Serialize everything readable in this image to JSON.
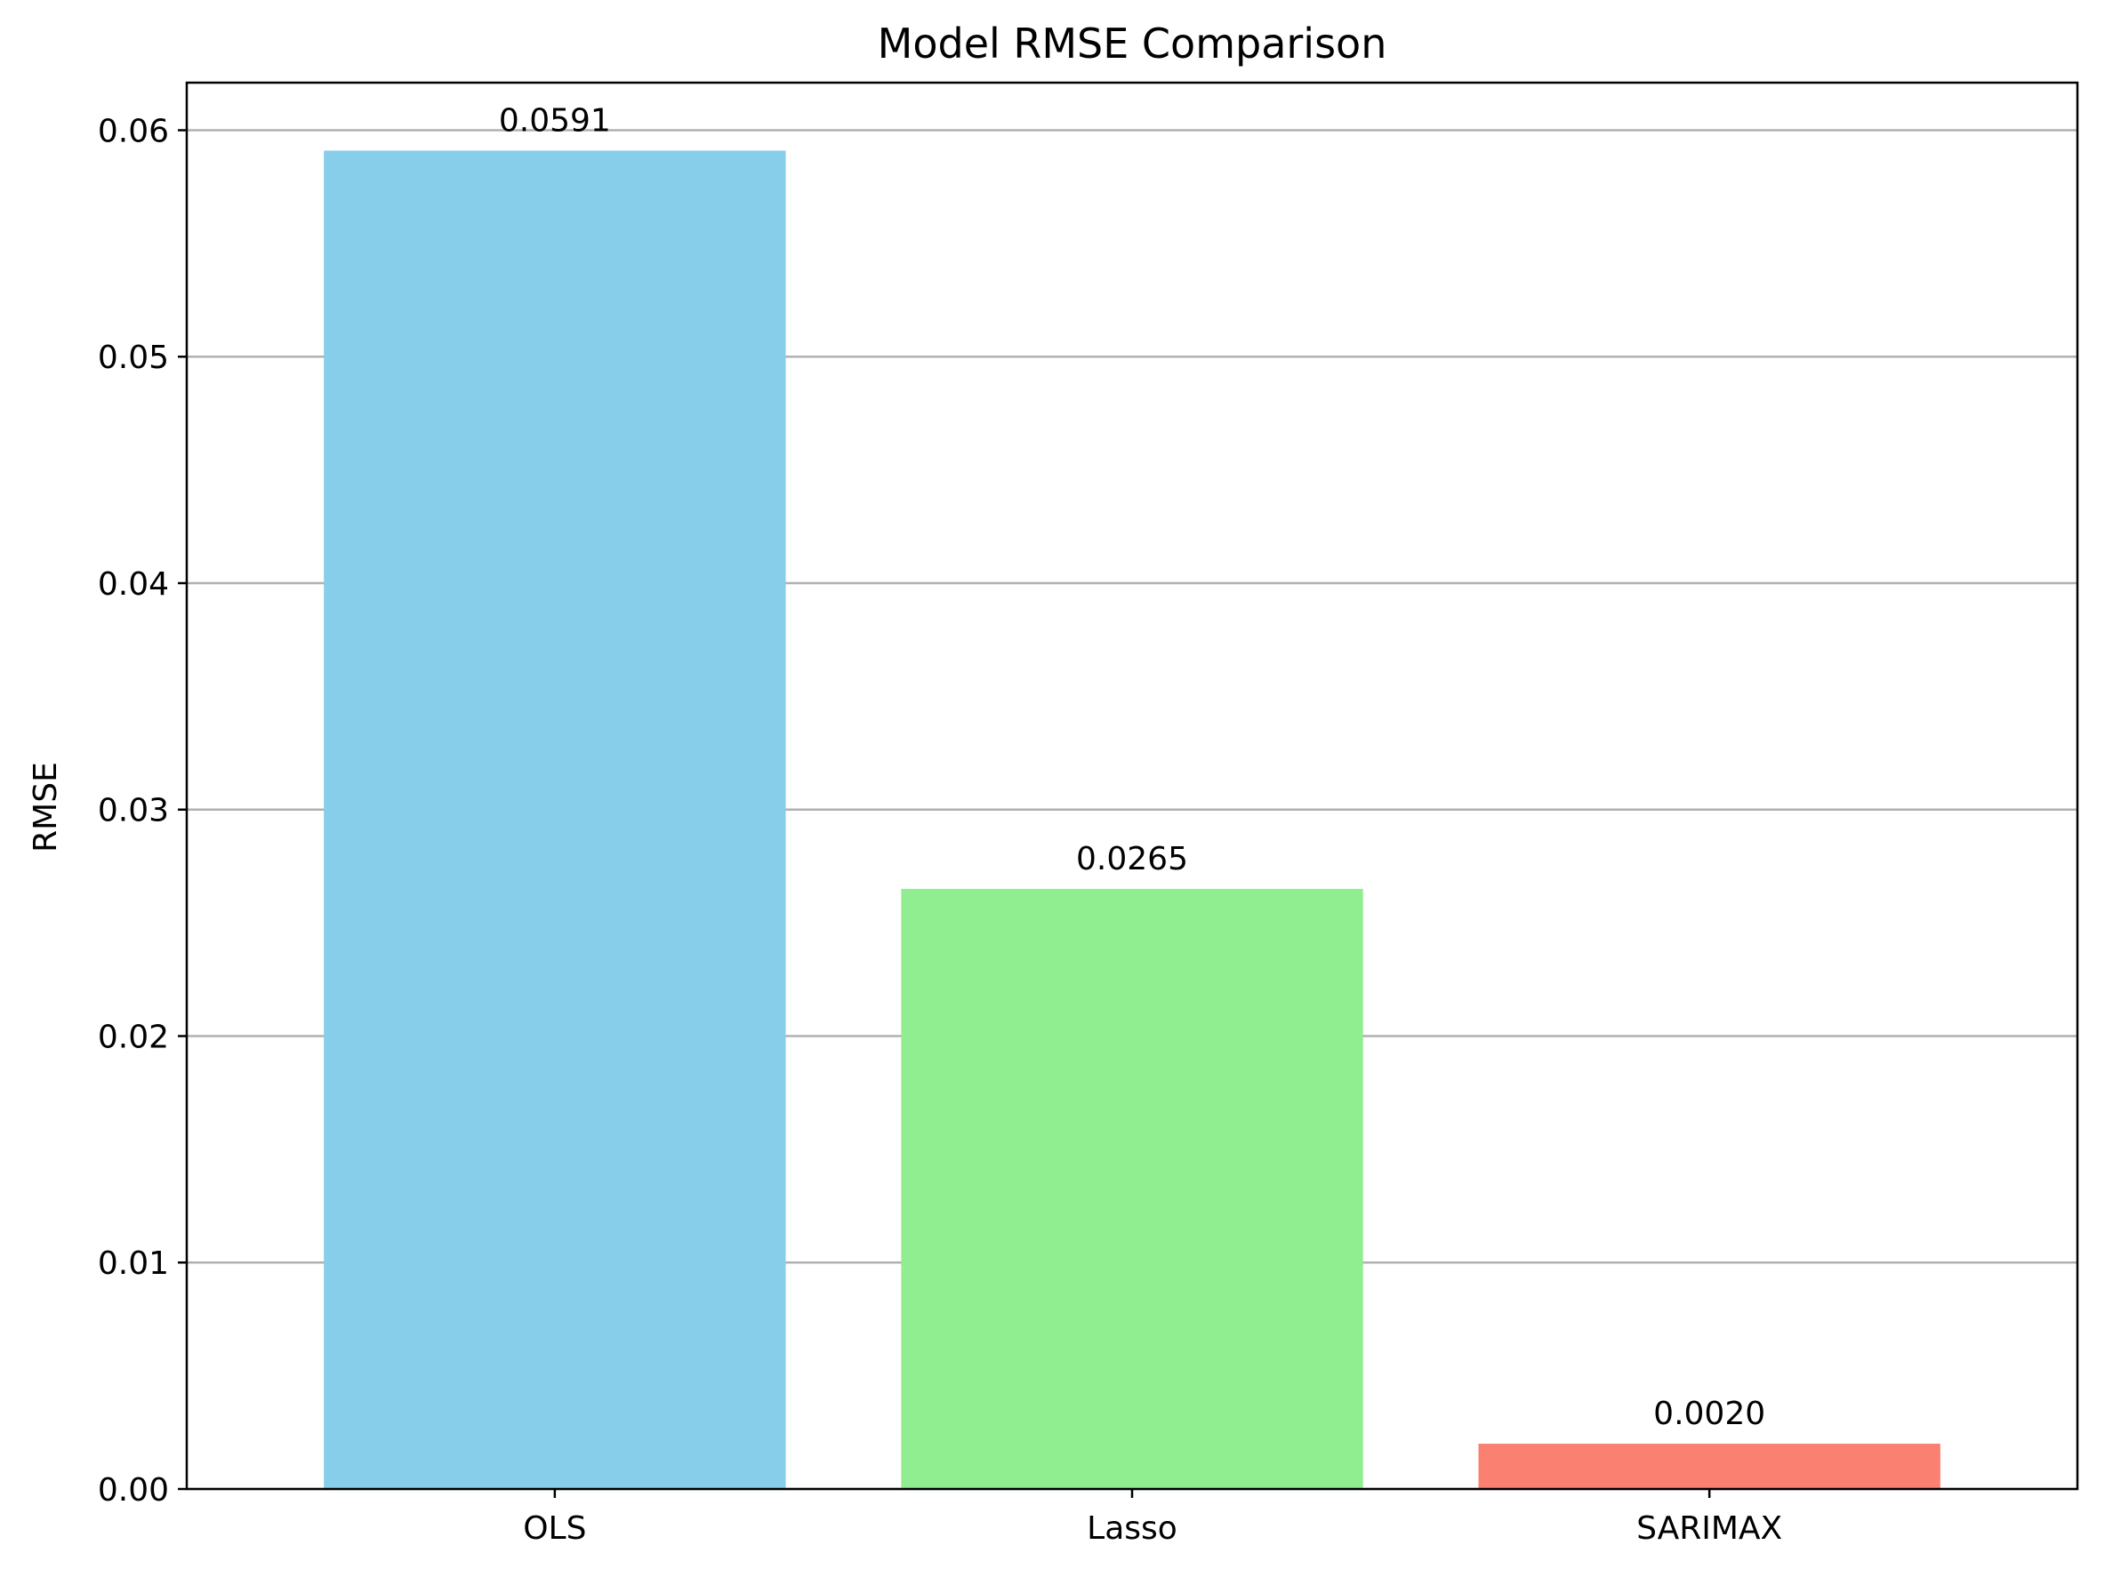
{
  "chart_data": {
    "type": "bar",
    "title": "Model RMSE Comparison",
    "xlabel": "",
    "ylabel": "RMSE",
    "categories": [
      "OLS",
      "Lasso",
      "SARIMAX"
    ],
    "values": [
      0.0591,
      0.0265,
      0.002
    ],
    "value_labels": [
      "0.0591",
      "0.0265",
      "0.0020"
    ],
    "colors": [
      "#87CEEB",
      "#90EE90",
      "#FA8072"
    ],
    "ylim": [
      0,
      0.0621
    ],
    "yticks": [
      0.0,
      0.01,
      0.02,
      0.03,
      0.04,
      0.05,
      0.06
    ],
    "ytick_labels": [
      "0.00",
      "0.01",
      "0.02",
      "0.03",
      "0.04",
      "0.05",
      "0.06"
    ],
    "grid": "y",
    "grid_color": "#b0b0b0",
    "legend": "none"
  }
}
